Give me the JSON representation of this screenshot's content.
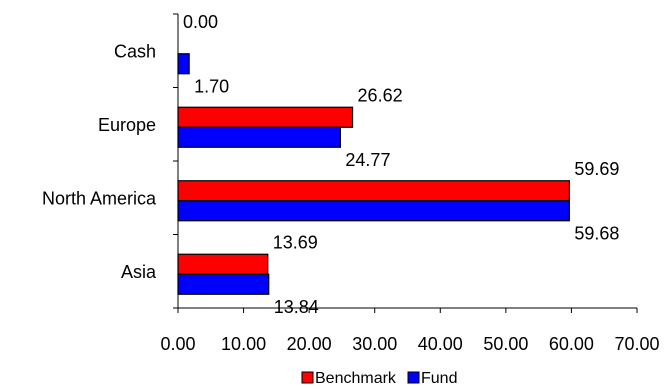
{
  "chart_data": {
    "type": "bar",
    "orientation": "horizontal",
    "categories": [
      "Cash",
      "Europe",
      "North America",
      "Asia"
    ],
    "series": [
      {
        "name": "Benchmark",
        "color": "#ff0000",
        "values": [
          0.0,
          26.62,
          59.69,
          13.69
        ]
      },
      {
        "name": "Fund",
        "color": "#0000ff",
        "values": [
          1.7,
          24.77,
          59.68,
          13.84
        ]
      }
    ],
    "value_labels": {
      "Benchmark": [
        "0.00",
        "26.62",
        "59.69",
        "13.69"
      ],
      "Fund": [
        "1.70",
        "24.77",
        "59.68",
        "13.84"
      ]
    },
    "x_ticks": [
      "0.00",
      "10.00",
      "20.00",
      "30.00",
      "40.00",
      "50.00",
      "60.00",
      "70.00"
    ],
    "xlim": [
      0,
      70
    ],
    "title": "",
    "xlabel": "",
    "ylabel": "",
    "grid": false,
    "legend_position": "bottom"
  }
}
